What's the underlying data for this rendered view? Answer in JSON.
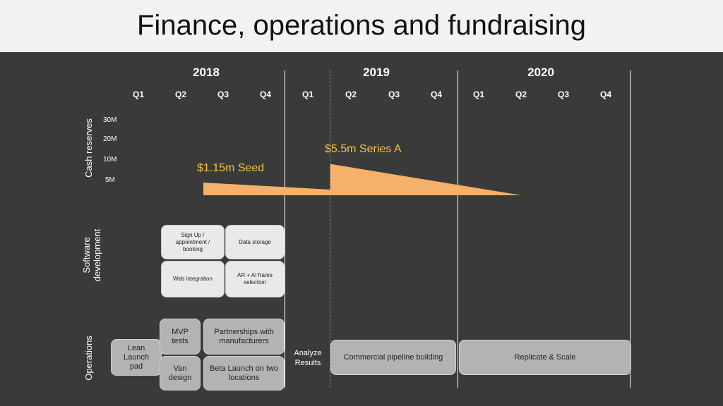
{
  "title": "Finance, operations and fundraising",
  "years": [
    "2018",
    "2019",
    "2020"
  ],
  "quarters": [
    "Q1",
    "Q2",
    "Q3",
    "Q4",
    "Q1",
    "Q2",
    "Q3",
    "Q4",
    "Q1",
    "Q2",
    "Q3",
    "Q4"
  ],
  "rows": {
    "cash": "Cash reserves",
    "software": "Software development",
    "operations": "Operations"
  },
  "cash_ticks": [
    "30M",
    "20M",
    "10M",
    "5M"
  ],
  "rounds": {
    "seed": "$1.15m Seed",
    "series_a": "$5.5m Series A"
  },
  "colors": {
    "background": "#3a3a3a",
    "title_band": "#f2f2f2",
    "cash_area": "#f5b06a",
    "round_text": "#f6c23e",
    "software_box": "#e9e9e9",
    "operations_box": "#b3b3b3"
  },
  "software": {
    "signup": "Sign Up / appointment / booking",
    "data_storage": "Data storage",
    "web_integration": "Web integration",
    "ar_ai": "AR + AI frame selection"
  },
  "operations": {
    "lean_launch": "Lean Launch pad",
    "mvp_tests": "MVP tests",
    "van_design": "Van design",
    "partnerships": "Partnerships with manufacturers",
    "beta_launch": "Beta Launch on two locations",
    "analyze_results": "Analyze Results",
    "commercial_pipeline": "Commercial pipeline building",
    "replicate_scale": "Replicate & Scale"
  }
}
